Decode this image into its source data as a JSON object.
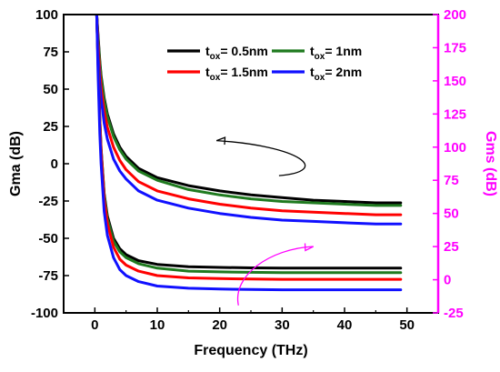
{
  "chart_data": {
    "type": "line",
    "title": "",
    "xlabel": "Frequency (THz)",
    "ylabel_left": "Gma (dB)",
    "ylabel_right": "Gms (dB)",
    "xlim": [
      -5,
      55
    ],
    "ylim_left": [
      -100,
      100
    ],
    "ylim_right": [
      -25,
      200
    ],
    "xticks": [
      0,
      10,
      20,
      30,
      40,
      50
    ],
    "yticks_left": [
      -100,
      -75,
      -50,
      -25,
      0,
      25,
      50,
      75,
      100
    ],
    "yticks_right": [
      -25,
      0,
      25,
      50,
      75,
      100,
      125,
      150,
      175,
      200
    ],
    "grid": false,
    "legend_position": "top-right",
    "legend": [
      {
        "sym": "t",
        "sub": "ox",
        "text": "= 0.5nm",
        "color": "#000000"
      },
      {
        "sym": "t",
        "sub": "ox",
        "text": "= 1nm",
        "color": "#1f7a1f"
      },
      {
        "sym": "t",
        "sub": "ox",
        "text": "= 1.5nm",
        "color": "#ff0000"
      },
      {
        "sym": "t",
        "sub": "ox",
        "text": "= 2nm",
        "color": "#1010ff"
      }
    ],
    "colors": {
      "left_axis": "#000000",
      "right_axis": "#ff00ff",
      "black": "#000000",
      "green": "#1f7a1f",
      "red": "#ff0000",
      "blue": "#1010ff"
    },
    "gms_series": [
      {
        "color": "#000000",
        "x": [
          0.3,
          0.5,
          0.8,
          1,
          1.5,
          2,
          3,
          4,
          5,
          7,
          10,
          15,
          20,
          25,
          30,
          35,
          40,
          45,
          49
        ],
        "y": [
          200,
          185,
          165,
          154,
          137,
          125,
          110,
          100,
          93,
          84,
          77,
          71,
          67,
          64,
          62,
          60,
          59,
          58,
          58
        ]
      },
      {
        "color": "#1f7a1f",
        "x": [
          0.3,
          0.5,
          0.8,
          1,
          1.5,
          2,
          3,
          4,
          5,
          7,
          10,
          15,
          20,
          25,
          30,
          35,
          40,
          45,
          49
        ],
        "y": [
          200,
          183,
          163,
          152,
          135,
          123,
          108,
          98,
          91,
          82,
          75,
          68,
          64,
          61,
          59,
          58,
          57,
          56,
          56
        ]
      },
      {
        "color": "#ff0000",
        "x": [
          0.3,
          0.5,
          0.8,
          1,
          1.5,
          2,
          3,
          4,
          5,
          7,
          10,
          15,
          20,
          25,
          30,
          35,
          40,
          45,
          49
        ],
        "y": [
          200,
          178,
          156,
          145,
          127,
          115,
          100,
          90,
          83,
          74,
          67,
          61,
          57,
          54,
          52,
          51,
          50,
          49,
          49
        ]
      },
      {
        "color": "#1010ff",
        "x": [
          0.3,
          0.5,
          0.8,
          1,
          1.5,
          2,
          3,
          4,
          5,
          7,
          10,
          15,
          20,
          25,
          30,
          35,
          40,
          45,
          49
        ],
        "y": [
          200,
          172,
          148,
          137,
          118,
          106,
          91,
          82,
          76,
          67,
          60,
          54,
          50,
          47,
          45,
          44,
          43,
          42,
          42
        ]
      }
    ],
    "gma_series": [
      {
        "color": "#000000",
        "x": [
          0.3,
          0.5,
          0.8,
          1,
          1.5,
          2,
          3,
          4,
          5,
          7,
          10,
          15,
          20,
          25,
          30,
          40,
          49
        ],
        "y": [
          100,
          70,
          30,
          10,
          -20,
          -35,
          -50,
          -57,
          -61,
          -65,
          -67.5,
          -69,
          -69.5,
          -69.8,
          -70,
          -70,
          -70
        ]
      },
      {
        "color": "#1f7a1f",
        "x": [
          0.3,
          0.5,
          0.8,
          1,
          1.5,
          2,
          3,
          4,
          5,
          7,
          10,
          15,
          20,
          25,
          30,
          40,
          49
        ],
        "y": [
          100,
          70,
          30,
          10,
          -21,
          -37,
          -52,
          -59,
          -63,
          -67,
          -70,
          -72,
          -72.5,
          -72.8,
          -73,
          -73,
          -73
        ]
      },
      {
        "color": "#ff0000",
        "x": [
          0.3,
          0.5,
          0.8,
          1,
          1.5,
          2,
          3,
          4,
          5,
          7,
          10,
          15,
          20,
          25,
          30,
          40,
          49
        ],
        "y": [
          100,
          68,
          28,
          8,
          -24,
          -40,
          -56,
          -64,
          -68,
          -72,
          -75,
          -76.5,
          -77,
          -77.3,
          -77.5,
          -77.5,
          -77.5
        ]
      },
      {
        "color": "#1010ff",
        "x": [
          0.3,
          0.5,
          0.8,
          1,
          1.5,
          2,
          3,
          4,
          5,
          7,
          10,
          15,
          20,
          25,
          30,
          40,
          49
        ],
        "y": [
          100,
          62,
          20,
          0,
          -32,
          -48,
          -63,
          -71,
          -75,
          -79,
          -82,
          -83.5,
          -84,
          -84.3,
          -84.5,
          -84.5,
          -84.5
        ]
      }
    ],
    "annotations": [
      {
        "name": "gms-arrow",
        "color": "#000000",
        "points_left_axis": [
          [
            29.5,
            -8
          ],
          [
            38,
            -5
          ],
          [
            33,
            12
          ],
          [
            19.5,
            15.5
          ]
        ],
        "arrowhead": "end"
      },
      {
        "name": "gma-arrow",
        "color": "#ff00ff",
        "points_left_axis": [
          [
            23,
            -95
          ],
          [
            22,
            -75
          ],
          [
            28,
            -57
          ],
          [
            35,
            -55.5
          ]
        ],
        "arrowhead": "end"
      }
    ]
  }
}
